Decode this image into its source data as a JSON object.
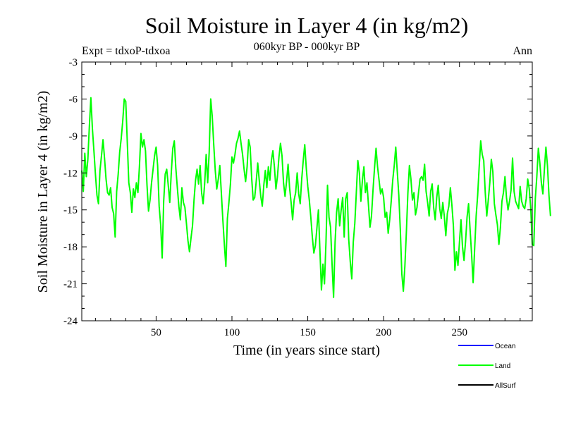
{
  "chart_data": {
    "type": "line",
    "title": "Soil Moisture in Layer 4 (in kg/m2)",
    "subtitle": "060kyr BP - 000kyr BP",
    "experiment_label": "Expt = tdxoP-tdxoa",
    "season_label": "Ann",
    "xlabel": "Time (in years since start)",
    "ylabel": "Soil Moisture in Layer 4 (in kg/m2)",
    "xlim": [
      1,
      298
    ],
    "ylim": [
      -24,
      -3
    ],
    "xticks": [
      50,
      100,
      150,
      200,
      250
    ],
    "xtick_labels": [
      "50",
      "100",
      "150",
      "200",
      "250"
    ],
    "yticks": [
      -3,
      -6,
      -9,
      -12,
      -15,
      -18,
      -21,
      -24
    ],
    "ytick_labels": [
      "-3",
      "-6",
      "-9",
      "-12",
      "-15",
      "-18",
      "-21",
      "-24"
    ],
    "legend": [
      {
        "name": "Ocean",
        "color": "#0000ff"
      },
      {
        "name": "Land",
        "color": "#00ff00"
      },
      {
        "name": "AllSurf",
        "color": "#000000"
      }
    ],
    "series": [
      {
        "name": "Land",
        "color": "#00ff00",
        "start_year": 1,
        "values": [
          -11.8,
          -13.5,
          -10.4,
          -12.3,
          -10.9,
          -8.2,
          -5.9,
          -8.4,
          -10.2,
          -12.1,
          -13.8,
          -14.5,
          -11.8,
          -10.6,
          -9.3,
          -10.8,
          -12.5,
          -13.6,
          -13.8,
          -13.2,
          -14.8,
          -15.3,
          -17.2,
          -13.5,
          -12.1,
          -10.3,
          -9.2,
          -7.8,
          -6.0,
          -6.2,
          -9.5,
          -12.8,
          -13.6,
          -15.2,
          -13.3,
          -14.0,
          -12.8,
          -13.6,
          -11.5,
          -8.8,
          -9.9,
          -9.3,
          -10.2,
          -13.0,
          -15.1,
          -14.2,
          -12.8,
          -11.7,
          -10.6,
          -9.9,
          -11.4,
          -14.7,
          -16.2,
          -18.9,
          -14.3,
          -12.1,
          -11.7,
          -13.0,
          -14.4,
          -12.0,
          -10.0,
          -9.4,
          -11.6,
          -13.2,
          -14.7,
          -15.8,
          -13.2,
          -14.4,
          -14.8,
          -16.1,
          -17.5,
          -18.4,
          -17.3,
          -16.3,
          -14.2,
          -12.6,
          -11.7,
          -12.9,
          -11.4,
          -13.6,
          -14.5,
          -12.9,
          -10.5,
          -12.8,
          -10.3,
          -6.0,
          -7.4,
          -9.7,
          -11.8,
          -13.3,
          -12.5,
          -11.4,
          -13.6,
          -15.8,
          -17.8,
          -19.6,
          -15.7,
          -14.4,
          -12.9,
          -10.7,
          -11.2,
          -10.5,
          -9.6,
          -9.2,
          -8.6,
          -9.6,
          -10.5,
          -11.7,
          -12.7,
          -11.5,
          -9.3,
          -9.9,
          -12.4,
          -14.2,
          -14.0,
          -12.7,
          -11.2,
          -12.6,
          -13.9,
          -14.7,
          -13.0,
          -11.8,
          -13.2,
          -11.5,
          -12.6,
          -11.0,
          -10.2,
          -11.5,
          -13.3,
          -12.3,
          -10.7,
          -9.6,
          -10.6,
          -12.8,
          -13.9,
          -12.7,
          -11.3,
          -13.2,
          -14.4,
          -15.8,
          -14.2,
          -13.6,
          -12.0,
          -13.7,
          -14.5,
          -12.5,
          -11.0,
          -9.7,
          -11.6,
          -13.1,
          -14.2,
          -15.6,
          -17.2,
          -18.5,
          -17.9,
          -16.5,
          -15.0,
          -18.3,
          -21.5,
          -19.4,
          -21.0,
          -17.6,
          -13.0,
          -15.6,
          -16.4,
          -19.4,
          -22.1,
          -17.6,
          -15.2,
          -14.1,
          -16.3,
          -15.0,
          -14.0,
          -17.2,
          -14.1,
          -13.6,
          -17.4,
          -19.2,
          -20.6,
          -17.6,
          -16.1,
          -13.6,
          -11.0,
          -12.0,
          -14.3,
          -12.6,
          -11.5,
          -13.6,
          -12.8,
          -14.6,
          -16.4,
          -15.5,
          -13.4,
          -11.6,
          -10.0,
          -11.5,
          -12.6,
          -13.7,
          -13.3,
          -14.0,
          -15.6,
          -15.2,
          -16.9,
          -15.8,
          -14.3,
          -12.6,
          -11.4,
          -9.9,
          -11.9,
          -13.8,
          -16.6,
          -20.2,
          -21.6,
          -19.6,
          -16.8,
          -13.6,
          -11.4,
          -12.5,
          -14.2,
          -13.6,
          -15.4,
          -14.8,
          -13.6,
          -12.5,
          -12.3,
          -12.6,
          -11.3,
          -13.5,
          -14.4,
          -15.5,
          -13.5,
          -12.9,
          -14.8,
          -15.8,
          -14.0,
          -13.0,
          -14.9,
          -15.7,
          -14.4,
          -15.5,
          -17.1,
          -15.3,
          -14.7,
          -13.2,
          -14.6,
          -16.3,
          -19.9,
          -18.4,
          -19.5,
          -17.6,
          -15.8,
          -18.0,
          -19.1,
          -17.6,
          -15.6,
          -14.5,
          -16.6,
          -18.6,
          -20.9,
          -18.2,
          -15.5,
          -13.8,
          -11.5,
          -9.4,
          -10.5,
          -11.0,
          -13.6,
          -15.5,
          -14.2,
          -12.8,
          -10.9,
          -11.9,
          -14.5,
          -15.4,
          -16.2,
          -17.8,
          -16.4,
          -14.3,
          -13.6,
          -12.3,
          -14.0,
          -15.0,
          -14.3,
          -13.4,
          -10.8,
          -13.5,
          -14.3,
          -14.6,
          -14.9,
          -13.1,
          -14.3,
          -14.7,
          -14.9,
          -14.1,
          -12.5,
          -13.3,
          -14.9,
          -17.8,
          -17.9,
          -14.1,
          -12.3,
          -10.0,
          -11.2,
          -12.8,
          -13.7,
          -11.7,
          -9.9,
          -11.4,
          -13.8,
          -15.5
        ]
      }
    ]
  }
}
